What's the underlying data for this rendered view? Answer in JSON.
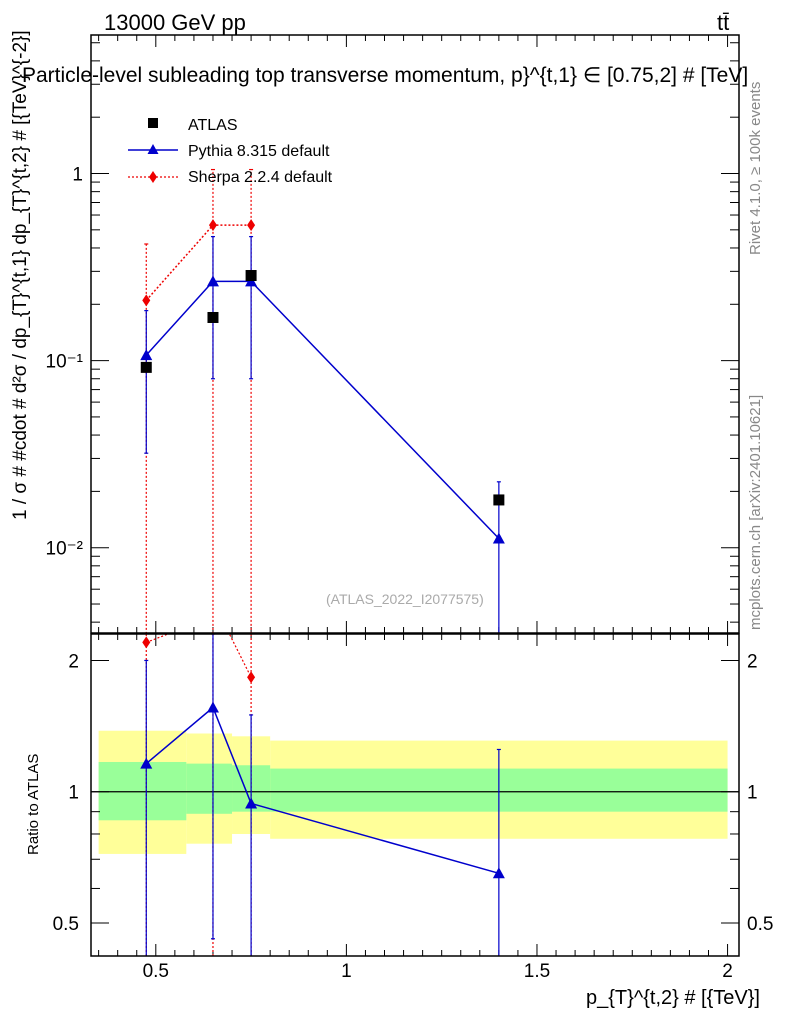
{
  "header": {
    "energy_label": "13000 GeV pp",
    "process_label": "tt̄",
    "title": "Particle-level subleading top transverse momentum, p}^{t,1} ∈ [0.75,2] # [TeV]"
  },
  "side_labels": {
    "rivet": "Rivet 4.1.0, ≥ 100k events",
    "mcplots": "mcplots.cern.ch [arXiv:2401.10621]"
  },
  "watermark": "(ATLAS_2022_I2077575)",
  "colors": {
    "atlas": "#000000",
    "pythia": "#0000cc",
    "sherpa": "#ee0000",
    "band_inner": "#99ff99",
    "band_outer": "#ffff99"
  },
  "chart_data": [
    {
      "type": "scatter",
      "panel": "main",
      "ylabel": "1 / σ # #cdot # d²σ / dp_{T}^{t,1} dp_{T}^{t,2} # [{TeV}^{-2}]",
      "xlim": [
        0.33,
        2.03
      ],
      "ylim_log": [
        0.0035,
        5.5
      ],
      "yscale": "log",
      "ytick_values": [
        0.01,
        0.1,
        1
      ],
      "ytick_labels": [
        "10⁻²",
        "10⁻¹",
        "1"
      ],
      "legend": {
        "placement": "top-left",
        "entries": [
          "ATLAS",
          "Pythia 8.315 default",
          "Sherpa 2.2.4 default"
        ]
      },
      "series": [
        {
          "name": "ATLAS",
          "marker": "square",
          "x": [
            0.475,
            0.65,
            0.75,
            1.4
          ],
          "y": [
            0.092,
            0.17,
            0.285,
            0.018
          ],
          "xerr": [
            [
              0.0,
              0.0,
              0.0,
              0.0
            ],
            [
              0.0,
              0.0,
              0.0,
              0.0
            ]
          ]
        },
        {
          "name": "Pythia 8.315 default",
          "marker": "triangle",
          "line": "solid",
          "x": [
            0.475,
            0.65,
            0.75,
            1.4
          ],
          "y": [
            0.107,
            0.265,
            0.265,
            0.0112
          ],
          "yerr_low": [
            0.032,
            0.08,
            0.08,
            0.0001
          ],
          "yerr_high": [
            0.185,
            0.46,
            0.46,
            0.0225
          ],
          "bins": [
            [
              0.35,
              0.6
            ],
            [
              0.6,
              0.7
            ],
            [
              0.7,
              0.8
            ],
            [
              0.8,
              2.0
            ]
          ]
        },
        {
          "name": "Sherpa 2.2.4 default",
          "marker": "diamond",
          "line": "dotted",
          "x": [
            0.475,
            0.65,
            0.75,
            1.4
          ],
          "y": [
            0.21,
            0.53,
            0.53,
            null
          ],
          "yerr_low": [
            0.0001,
            0.0001,
            0.0001,
            null
          ],
          "yerr_high": [
            0.42,
            1.05,
            1.05,
            null
          ],
          "bins": [
            [
              0.35,
              0.6
            ],
            [
              0.6,
              0.7
            ],
            [
              0.7,
              0.8
            ],
            [
              0.8,
              2.0
            ]
          ]
        }
      ]
    },
    {
      "type": "scatter",
      "panel": "ratio",
      "ylabel": "Ratio to ATLAS",
      "xlabel": "p_{T}^{t,2} # [{TeV}]",
      "xlim": [
        0.33,
        2.03
      ],
      "ylim": [
        0.42,
        2.3
      ],
      "yscale": "log",
      "ytick_values": [
        0.5,
        1,
        2
      ],
      "ytick_labels": [
        "0.5",
        "1",
        "2"
      ],
      "xtick_values": [
        0.5,
        1,
        1.5,
        2
      ],
      "xtick_labels": [
        "0.5",
        "1",
        "1.5",
        "2"
      ],
      "uncertainty_bands": [
        {
          "bin": [
            0.35,
            0.58
          ],
          "outer": [
            0.72,
            1.38
          ],
          "inner": [
            0.86,
            1.17
          ]
        },
        {
          "bin": [
            0.58,
            0.7
          ],
          "outer": [
            0.76,
            1.36
          ],
          "inner": [
            0.89,
            1.16
          ]
        },
        {
          "bin": [
            0.7,
            0.8
          ],
          "outer": [
            0.8,
            1.34
          ],
          "inner": [
            0.9,
            1.15
          ]
        },
        {
          "bin": [
            0.8,
            2.0
          ],
          "outer": [
            0.78,
            1.31
          ],
          "inner": [
            0.9,
            1.13
          ]
        }
      ],
      "series": [
        {
          "name": "Pythia 8.315 default",
          "x": [
            0.475,
            0.65,
            0.75,
            1.4
          ],
          "y": [
            1.16,
            1.56,
            0.94,
            0.65
          ],
          "yerr_low": [
            0.3,
            0.46,
            0.3,
            0.3
          ],
          "yerr_high": [
            2.0,
            2.3,
            1.5,
            1.25
          ]
        },
        {
          "name": "Sherpa 2.2.4 default",
          "x": [
            0.475,
            0.75
          ],
          "y": [
            2.2,
            1.83
          ],
          "extends_above": [
            true,
            true
          ]
        }
      ]
    }
  ]
}
